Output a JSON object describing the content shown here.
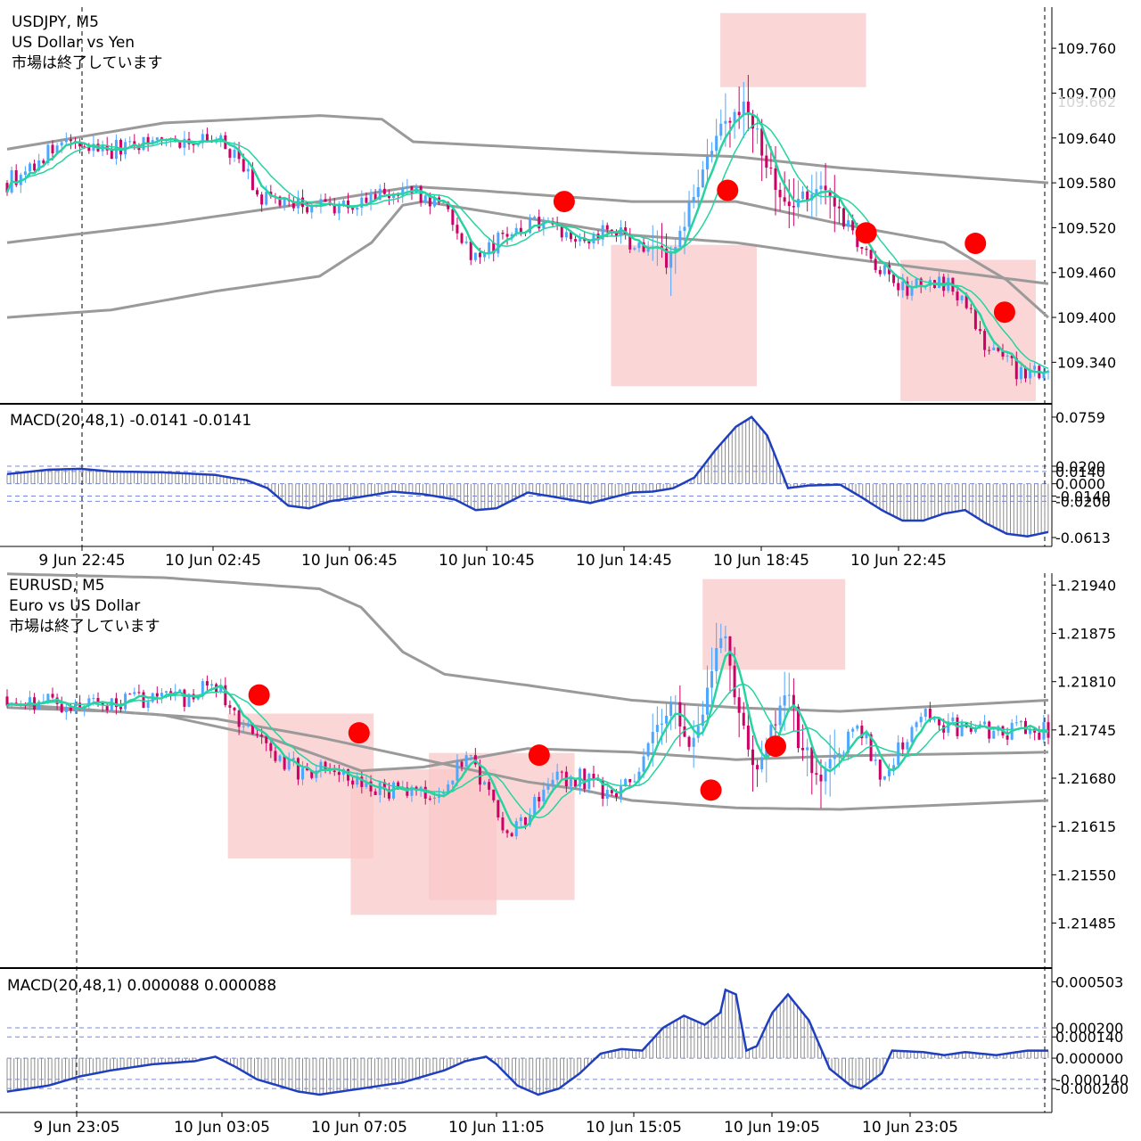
{
  "chart_data": [
    {
      "type": "candlestick",
      "symbol_line": "USDJPY, M5",
      "desc_line": "US Dollar vs Yen",
      "status_line": "市場は終了しています",
      "y_ticks": [
        "109.760",
        "109.700",
        "109.640",
        "109.580",
        "109.520",
        "109.460",
        "109.400",
        "109.340"
      ],
      "y_tick_values": [
        109.76,
        109.7,
        109.64,
        109.58,
        109.52,
        109.46,
        109.4,
        109.34
      ],
      "ylim": [
        109.288,
        109.815
      ],
      "current_price": "109.662",
      "x_ticks": [
        "9 Jun 22:45",
        "10 Jun 02:45",
        "10 Jun 06:45",
        "10 Jun 10:45",
        "10 Jun 14:45",
        "10 Jun 18:45",
        "10 Jun 22:45"
      ],
      "close_path": [
        [
          0,
          109.58
        ],
        [
          0.05,
          109.63
        ],
        [
          0.1,
          109.625
        ],
        [
          0.15,
          109.64
        ],
        [
          0.2,
          109.635
        ],
        [
          0.22,
          109.62
        ],
        [
          0.24,
          109.56
        ],
        [
          0.28,
          109.55
        ],
        [
          0.33,
          109.55
        ],
        [
          0.38,
          109.57
        ],
        [
          0.42,
          109.55
        ],
        [
          0.45,
          109.475
        ],
        [
          0.48,
          109.51
        ],
        [
          0.52,
          109.535
        ],
        [
          0.55,
          109.5
        ],
        [
          0.58,
          109.52
        ],
        [
          0.61,
          109.49
        ],
        [
          0.64,
          109.475
        ],
        [
          0.66,
          109.57
        ],
        [
          0.69,
          109.66
        ],
        [
          0.71,
          109.69
        ],
        [
          0.73,
          109.6
        ],
        [
          0.75,
          109.55
        ],
        [
          0.78,
          109.57
        ],
        [
          0.8,
          109.54
        ],
        [
          0.83,
          109.47
        ],
        [
          0.86,
          109.44
        ],
        [
          0.88,
          109.44
        ],
        [
          0.9,
          109.445
        ],
        [
          0.92,
          109.43
        ],
        [
          0.94,
          109.36
        ],
        [
          0.97,
          109.33
        ],
        [
          1,
          109.33
        ]
      ],
      "bands_upper": [
        [
          0,
          109.625
        ],
        [
          0.15,
          109.66
        ],
        [
          0.3,
          109.67
        ],
        [
          0.36,
          109.665
        ],
        [
          0.39,
          109.635
        ],
        [
          0.6,
          109.62
        ],
        [
          0.7,
          109.615
        ],
        [
          0.8,
          109.6
        ],
        [
          1,
          109.58
        ]
      ],
      "bands_middle": [
        [
          0,
          109.5
        ],
        [
          0.15,
          109.525
        ],
        [
          0.3,
          109.555
        ],
        [
          0.39,
          109.575
        ],
        [
          0.45,
          109.57
        ],
        [
          0.6,
          109.555
        ],
        [
          0.7,
          109.555
        ],
        [
          0.8,
          109.525
        ],
        [
          0.9,
          109.5
        ],
        [
          0.96,
          109.45
        ],
        [
          1,
          109.4
        ]
      ],
      "bands_lower": [
        [
          0,
          109.4
        ],
        [
          0.1,
          109.41
        ],
        [
          0.2,
          109.435
        ],
        [
          0.3,
          109.455
        ],
        [
          0.35,
          109.5
        ],
        [
          0.38,
          109.55
        ],
        [
          0.4,
          109.555
        ],
        [
          0.6,
          109.51
        ],
        [
          0.7,
          109.5
        ],
        [
          0.8,
          109.48
        ],
        [
          1,
          109.445
        ]
      ],
      "zones": [
        {
          "x0": 0.685,
          "x1": 0.825,
          "y0": 109.708,
          "y1": 109.807
        },
        {
          "x0": 0.58,
          "x1": 0.72,
          "y0": 109.308,
          "y1": 109.497
        },
        {
          "x0": 0.858,
          "x1": 0.988,
          "y0": 109.288,
          "y1": 109.477
        }
      ],
      "markers": [
        {
          "x": 0.535,
          "y": 109.555
        },
        {
          "x": 0.692,
          "y": 109.57
        },
        {
          "x": 0.825,
          "y": 109.513
        },
        {
          "x": 0.93,
          "y": 109.499
        },
        {
          "x": 0.958,
          "y": 109.407
        }
      ],
      "colors": {
        "up": "#4da6ff",
        "down": "#cc0066",
        "ma": "#27d3a0",
        "band": "#9a9a9a",
        "zone": "#f9c8c8",
        "marker": "#ff0000"
      }
    },
    {
      "type": "macd",
      "label": "MACD(20,48,1) -0.0141 -0.0141",
      "y_ticks": [
        "0.0759",
        "0.0200",
        "0.0140",
        "0.0000",
        "-0.0140",
        "-0.0200",
        "-0.0613"
      ],
      "y_tick_values": [
        0.0759,
        0.02,
        0.014,
        0.0,
        -0.014,
        -0.02,
        -0.0613
      ],
      "levels": [
        0.02,
        0.014,
        0.0,
        -0.014,
        -0.02
      ],
      "ylim": [
        -0.0684,
        0.086
      ],
      "path": [
        [
          0,
          0.011
        ],
        [
          0.04,
          0.016
        ],
        [
          0.07,
          0.017
        ],
        [
          0.1,
          0.014
        ],
        [
          0.15,
          0.013
        ],
        [
          0.2,
          0.01
        ],
        [
          0.23,
          0.004
        ],
        [
          0.25,
          -0.005
        ],
        [
          0.27,
          -0.025
        ],
        [
          0.29,
          -0.028
        ],
        [
          0.31,
          -0.02
        ],
        [
          0.34,
          -0.015
        ],
        [
          0.37,
          -0.009
        ],
        [
          0.4,
          -0.012
        ],
        [
          0.43,
          -0.018
        ],
        [
          0.45,
          -0.03
        ],
        [
          0.47,
          -0.028
        ],
        [
          0.5,
          -0.01
        ],
        [
          0.53,
          -0.016
        ],
        [
          0.56,
          -0.022
        ],
        [
          0.6,
          -0.01
        ],
        [
          0.62,
          -0.009
        ],
        [
          0.64,
          -0.005
        ],
        [
          0.66,
          0.007
        ],
        [
          0.68,
          0.038
        ],
        [
          0.7,
          0.065
        ],
        [
          0.715,
          0.076
        ],
        [
          0.73,
          0.055
        ],
        [
          0.75,
          -0.005
        ],
        [
          0.77,
          -0.002
        ],
        [
          0.8,
          -0.001
        ],
        [
          0.82,
          -0.015
        ],
        [
          0.84,
          -0.03
        ],
        [
          0.86,
          -0.042
        ],
        [
          0.88,
          -0.042
        ],
        [
          0.9,
          -0.034
        ],
        [
          0.92,
          -0.03
        ],
        [
          0.94,
          -0.045
        ],
        [
          0.96,
          -0.057
        ],
        [
          0.98,
          -0.06
        ],
        [
          1,
          -0.055
        ]
      ]
    },
    {
      "type": "candlestick",
      "symbol_line": "EURUSD, M5",
      "desc_line": "Euro vs US Dollar",
      "status_line": "市場は終了しています",
      "y_ticks": [
        "1.21940",
        "1.21875",
        "1.21810",
        "1.21745",
        "1.21680",
        "1.21615",
        "1.21550",
        "1.21485"
      ],
      "y_tick_values": [
        1.2194,
        1.21875,
        1.2181,
        1.21745,
        1.2168,
        1.21615,
        1.2155,
        1.21485
      ],
      "ylim": [
        1.21428,
        1.21956
      ],
      "x_ticks": [
        "9 Jun 23:05",
        "10 Jun 03:05",
        "10 Jun 07:05",
        "10 Jun 11:05",
        "10 Jun 15:05",
        "10 Jun 19:05",
        "10 Jun 23:05"
      ],
      "close_path": [
        [
          0,
          1.2179
        ],
        [
          0.07,
          1.21775
        ],
        [
          0.12,
          1.21785
        ],
        [
          0.18,
          1.2179
        ],
        [
          0.2,
          1.2181
        ],
        [
          0.22,
          1.2176
        ],
        [
          0.25,
          1.2172
        ],
        [
          0.28,
          1.2169
        ],
        [
          0.31,
          1.2169
        ],
        [
          0.34,
          1.2168
        ],
        [
          0.36,
          1.2166
        ],
        [
          0.38,
          1.2167
        ],
        [
          0.42,
          1.2166
        ],
        [
          0.44,
          1.2171
        ],
        [
          0.46,
          1.2167
        ],
        [
          0.48,
          1.216
        ],
        [
          0.5,
          1.2163
        ],
        [
          0.52,
          1.2168
        ],
        [
          0.55,
          1.2168
        ],
        [
          0.58,
          1.2166
        ],
        [
          0.6,
          1.2168
        ],
        [
          0.62,
          1.2174
        ],
        [
          0.64,
          1.2178
        ],
        [
          0.66,
          1.2172
        ],
        [
          0.68,
          1.2184
        ],
        [
          0.69,
          1.2188
        ],
        [
          0.7,
          1.2179
        ],
        [
          0.72,
          1.2169
        ],
        [
          0.74,
          1.2177
        ],
        [
          0.75,
          1.2181
        ],
        [
          0.76,
          1.2173
        ],
        [
          0.78,
          1.2168
        ],
        [
          0.8,
          1.2172
        ],
        [
          0.82,
          1.2175
        ],
        [
          0.84,
          1.2168
        ],
        [
          0.86,
          1.2173
        ],
        [
          0.88,
          1.2177
        ],
        [
          0.9,
          1.2175
        ],
        [
          0.95,
          1.21745
        ],
        [
          1,
          1.21745
        ]
      ],
      "bands_upper": [
        [
          0,
          1.21955
        ],
        [
          0.15,
          1.2195
        ],
        [
          0.3,
          1.21935
        ],
        [
          0.34,
          1.2191
        ],
        [
          0.38,
          1.2185
        ],
        [
          0.42,
          1.2182
        ],
        [
          0.5,
          1.21805
        ],
        [
          0.6,
          1.21785
        ],
        [
          0.7,
          1.21775
        ],
        [
          0.8,
          1.2177
        ],
        [
          1,
          1.21785
        ]
      ],
      "bands_middle": [
        [
          0,
          1.2178
        ],
        [
          0.15,
          1.21765
        ],
        [
          0.25,
          1.21735
        ],
        [
          0.3,
          1.2171
        ],
        [
          0.34,
          1.2169
        ],
        [
          0.4,
          1.21695
        ],
        [
          0.5,
          1.2172
        ],
        [
          0.6,
          1.21715
        ],
        [
          0.7,
          1.21705
        ],
        [
          0.8,
          1.2171
        ],
        [
          1,
          1.21715
        ]
      ],
      "bands_lower": [
        [
          0,
          1.21775
        ],
        [
          0.1,
          1.2177
        ],
        [
          0.2,
          1.2176
        ],
        [
          0.3,
          1.21735
        ],
        [
          0.4,
          1.21705
        ],
        [
          0.5,
          1.21675
        ],
        [
          0.55,
          1.21665
        ],
        [
          0.6,
          1.2165
        ],
        [
          0.7,
          1.2164
        ],
        [
          0.8,
          1.21638
        ],
        [
          1,
          1.2165
        ]
      ],
      "zones": [
        {
          "x0": 0.668,
          "x1": 0.805,
          "y0": 1.21826,
          "y1": 1.21948
        },
        {
          "x0": 0.212,
          "x1": 0.352,
          "y0": 1.21572,
          "y1": 1.21767
        },
        {
          "x0": 0.33,
          "x1": 0.47,
          "y0": 1.21496,
          "y1": 1.21692
        },
        {
          "x0": 0.405,
          "x1": 0.545,
          "y0": 1.21516,
          "y1": 1.21714
        }
      ],
      "markers": [
        {
          "x": 0.242,
          "y": 1.21792
        },
        {
          "x": 0.338,
          "y": 1.21741
        },
        {
          "x": 0.511,
          "y": 1.21711
        },
        {
          "x": 0.676,
          "y": 1.21664
        },
        {
          "x": 0.738,
          "y": 1.21723
        }
      ],
      "colors": {
        "up": "#4da6ff",
        "down": "#cc0066",
        "ma": "#27d3a0",
        "band": "#9a9a9a",
        "zone": "#f9c8c8",
        "marker": "#ff0000"
      }
    },
    {
      "type": "macd",
      "label": "MACD(20,48,1) 0.000088 0.000088",
      "y_ticks": [
        "0.000503",
        "0.000200",
        "0.000140",
        "0.000000",
        "-0.000140",
        "-0.000200"
      ],
      "y_tick_values": [
        0.000503,
        0.0002,
        0.00014,
        0.0,
        -0.00014,
        -0.0002
      ],
      "levels": [
        0.0002,
        0.00014,
        0.0,
        -0.00014,
        -0.0002
      ],
      "ylim": [
        -0.00034,
        0.00057
      ],
      "path": [
        [
          0,
          -0.00022
        ],
        [
          0.04,
          -0.00018
        ],
        [
          0.07,
          -0.00012
        ],
        [
          0.1,
          -8e-05
        ],
        [
          0.14,
          -4e-05
        ],
        [
          0.18,
          -2e-05
        ],
        [
          0.2,
          1e-05
        ],
        [
          0.22,
          -6e-05
        ],
        [
          0.24,
          -0.00014
        ],
        [
          0.26,
          -0.00018
        ],
        [
          0.28,
          -0.00022
        ],
        [
          0.3,
          -0.00024
        ],
        [
          0.32,
          -0.00022
        ],
        [
          0.34,
          -0.0002
        ],
        [
          0.36,
          -0.00018
        ],
        [
          0.38,
          -0.00016
        ],
        [
          0.4,
          -0.00012
        ],
        [
          0.42,
          -8e-05
        ],
        [
          0.44,
          -2e-05
        ],
        [
          0.46,
          1e-05
        ],
        [
          0.47,
          -4e-05
        ],
        [
          0.49,
          -0.00018
        ],
        [
          0.51,
          -0.00024
        ],
        [
          0.53,
          -0.0002
        ],
        [
          0.55,
          -0.0001
        ],
        [
          0.57,
          3e-05
        ],
        [
          0.59,
          6e-05
        ],
        [
          0.61,
          5e-05
        ],
        [
          0.63,
          0.0002
        ],
        [
          0.65,
          0.00028
        ],
        [
          0.67,
          0.00022
        ],
        [
          0.685,
          0.0003
        ],
        [
          0.69,
          0.00045
        ],
        [
          0.7,
          0.00042
        ],
        [
          0.71,
          5e-05
        ],
        [
          0.72,
          8e-05
        ],
        [
          0.735,
          0.0003
        ],
        [
          0.75,
          0.00042
        ],
        [
          0.77,
          0.00025
        ],
        [
          0.79,
          -7e-05
        ],
        [
          0.81,
          -0.00018
        ],
        [
          0.82,
          -0.0002
        ],
        [
          0.84,
          -0.0001
        ],
        [
          0.85,
          5e-05
        ],
        [
          0.88,
          4e-05
        ],
        [
          0.9,
          2e-05
        ],
        [
          0.92,
          4e-05
        ],
        [
          0.95,
          2e-05
        ],
        [
          0.98,
          5e-05
        ],
        [
          1,
          5e-05
        ]
      ]
    }
  ]
}
